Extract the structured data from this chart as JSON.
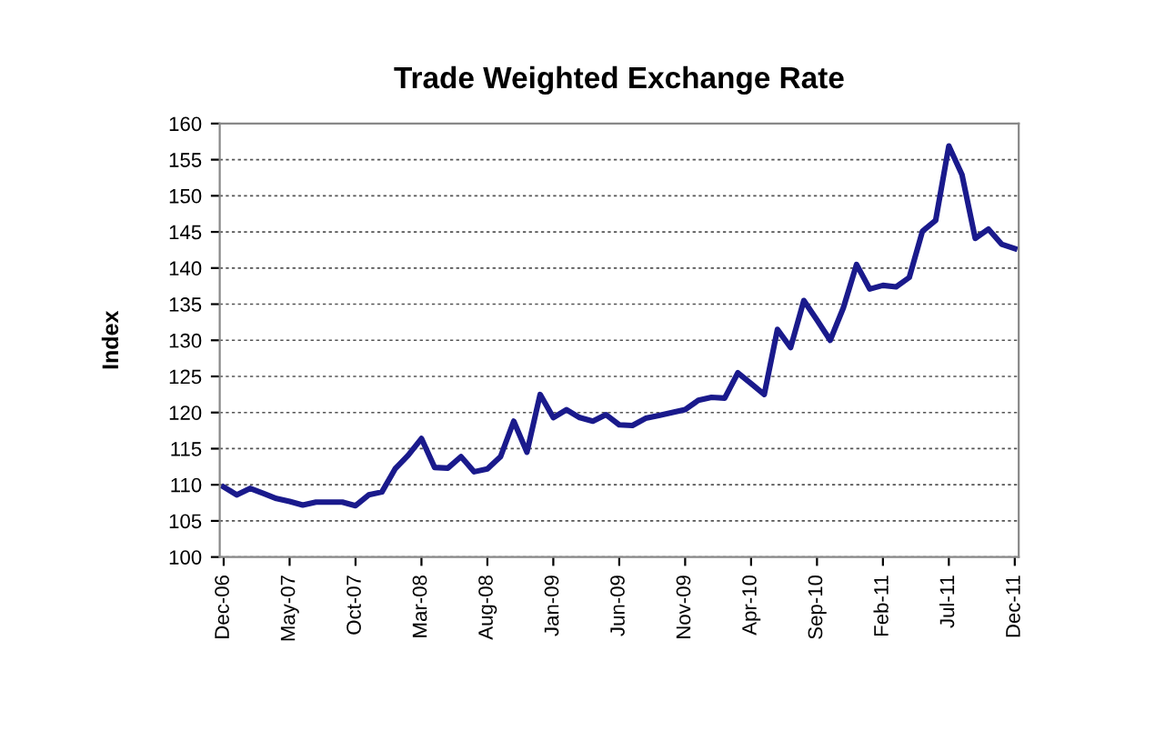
{
  "chart_data": {
    "type": "line",
    "title": "Trade Weighted Exchange Rate",
    "ylabel": "Index",
    "categories": [
      "Dec-06",
      null,
      null,
      null,
      null,
      "May-07",
      null,
      null,
      null,
      null,
      "Oct-07",
      null,
      null,
      null,
      null,
      "Mar-08",
      null,
      null,
      null,
      null,
      "Aug-08",
      null,
      null,
      null,
      null,
      "Jan-09",
      null,
      null,
      null,
      null,
      "Jun-09",
      null,
      null,
      null,
      null,
      "Nov-09",
      null,
      null,
      null,
      null,
      "Apr-10",
      null,
      null,
      null,
      null,
      "Sep-10",
      null,
      null,
      null,
      null,
      "Feb-11",
      null,
      null,
      null,
      null,
      "Jul-11",
      null,
      null,
      null,
      null,
      "Dec-11"
    ],
    "series": [
      {
        "color": "#1a1a8c",
        "values": [
          109.7,
          108.6,
          109.5,
          108.8,
          108.1,
          107.7,
          107.2,
          107.6,
          107.6,
          107.6,
          107.1,
          108.6,
          109.0,
          112.2,
          114.1,
          116.4,
          112.4,
          112.3,
          113.9,
          111.8,
          112.2,
          113.9,
          118.8,
          114.5,
          122.5,
          119.3,
          120.4,
          119.3,
          118.8,
          119.7,
          118.3,
          118.2,
          119.2,
          119.6,
          120.0,
          120.4,
          121.7,
          122.1,
          122.0,
          125.5,
          124.0,
          122.5,
          131.5,
          129.0,
          135.5,
          132.8,
          130.0,
          134.5,
          140.5,
          137.1,
          137.6,
          137.4,
          138.7,
          145.1,
          146.6,
          156.9,
          152.9,
          144.1,
          145.4,
          143.3,
          142.7
        ]
      }
    ],
    "ylim": [
      100,
      160
    ],
    "yticks": [
      100,
      105,
      110,
      115,
      120,
      125,
      130,
      135,
      140,
      145,
      150,
      155,
      160
    ],
    "grid": "y",
    "legend": false
  }
}
